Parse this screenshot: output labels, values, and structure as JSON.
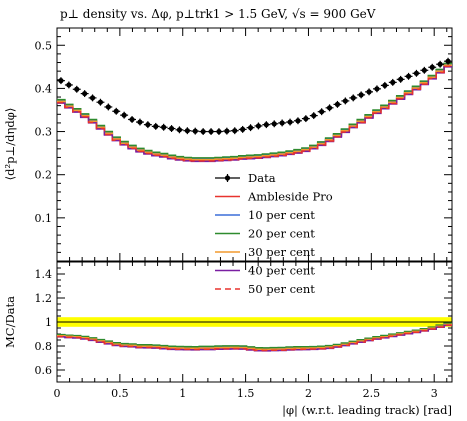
{
  "chart_data": {
    "type": "line",
    "title": "p⊥ density vs. Δφ, p⊥trk1 > 1.5 GeV, √s = 900 GeV",
    "ylabel_main": "⟨d²p⊥/dηdφ⟩",
    "ylabel_ratio": "MC/Data",
    "xlabel": "|φ| (w.r.t. leading track) [rad]",
    "xlim": [
      0,
      3.1416
    ],
    "ylim_main": [
      0,
      0.54
    ],
    "ylim_ratio": [
      0.5,
      1.5
    ],
    "x_ticks": [
      0,
      0.5,
      1,
      1.5,
      2,
      2.5,
      3
    ],
    "x_tick_labels": [
      "0",
      "0.5",
      "1",
      "1.5",
      "2",
      "2.5",
      "3"
    ],
    "y_ticks_main": [
      0.1,
      0.2,
      0.3,
      0.4,
      0.5
    ],
    "y_tick_labels_main": [
      "0.1",
      "0.2",
      "0.3",
      "0.4",
      "0.5"
    ],
    "y_ticks_ratio": [
      0.6,
      0.8,
      1.0,
      1.2,
      1.4
    ],
    "y_tick_labels_ratio": [
      "0.6",
      "0.8",
      "1",
      "1.2",
      "1.4"
    ],
    "legend_placement": "bottom-center",
    "n_bins": 50,
    "series": [
      {
        "name": "Data",
        "kind": "points",
        "color": "#000000",
        "values": [
          0.418,
          0.408,
          0.398,
          0.388,
          0.378,
          0.368,
          0.357,
          0.347,
          0.338,
          0.328,
          0.322,
          0.316,
          0.312,
          0.31,
          0.307,
          0.304,
          0.302,
          0.301,
          0.3,
          0.3,
          0.3,
          0.301,
          0.302,
          0.305,
          0.309,
          0.313,
          0.316,
          0.318,
          0.32,
          0.322,
          0.325,
          0.33,
          0.337,
          0.346,
          0.355,
          0.363,
          0.371,
          0.378,
          0.385,
          0.392,
          0.399,
          0.407,
          0.414,
          0.421,
          0.428,
          0.435,
          0.442,
          0.449,
          0.456,
          0.463
        ]
      },
      {
        "name": "Ambleside Pro",
        "kind": "step",
        "color": "#e8332e",
        "dash": "",
        "values": [
          0.368,
          0.357,
          0.347,
          0.335,
          0.322,
          0.308,
          0.294,
          0.281,
          0.271,
          0.262,
          0.255,
          0.25,
          0.246,
          0.243,
          0.239,
          0.236,
          0.234,
          0.233,
          0.233,
          0.233,
          0.234,
          0.235,
          0.236,
          0.238,
          0.239,
          0.24,
          0.242,
          0.244,
          0.246,
          0.249,
          0.252,
          0.256,
          0.262,
          0.27,
          0.279,
          0.289,
          0.3,
          0.311,
          0.322,
          0.333,
          0.344,
          0.355,
          0.366,
          0.377,
          0.388,
          0.399,
          0.411,
          0.424,
          0.438,
          0.452
        ]
      },
      {
        "name": "10 per cent",
        "kind": "step",
        "color": "#3b6fd8",
        "dash": "",
        "values": [
          0.372,
          0.361,
          0.351,
          0.339,
          0.326,
          0.312,
          0.298,
          0.285,
          0.275,
          0.266,
          0.259,
          0.254,
          0.25,
          0.247,
          0.243,
          0.24,
          0.238,
          0.237,
          0.237,
          0.237,
          0.238,
          0.239,
          0.24,
          0.242,
          0.243,
          0.244,
          0.246,
          0.248,
          0.25,
          0.253,
          0.256,
          0.26,
          0.266,
          0.274,
          0.283,
          0.293,
          0.304,
          0.315,
          0.326,
          0.337,
          0.348,
          0.359,
          0.37,
          0.381,
          0.392,
          0.403,
          0.415,
          0.428,
          0.442,
          0.456
        ]
      },
      {
        "name": "20 per cent",
        "kind": "step",
        "color": "#2e8b2e",
        "dash": "",
        "values": [
          0.374,
          0.363,
          0.353,
          0.341,
          0.328,
          0.314,
          0.3,
          0.287,
          0.277,
          0.268,
          0.261,
          0.256,
          0.252,
          0.249,
          0.245,
          0.242,
          0.24,
          0.239,
          0.239,
          0.239,
          0.24,
          0.241,
          0.242,
          0.244,
          0.245,
          0.246,
          0.248,
          0.25,
          0.252,
          0.255,
          0.258,
          0.262,
          0.268,
          0.276,
          0.285,
          0.295,
          0.306,
          0.317,
          0.328,
          0.339,
          0.35,
          0.361,
          0.372,
          0.383,
          0.394,
          0.405,
          0.417,
          0.43,
          0.444,
          0.458
        ]
      },
      {
        "name": "30 per cent",
        "kind": "step",
        "color": "#f29a2e",
        "dash": "",
        "values": [
          0.37,
          0.359,
          0.349,
          0.337,
          0.324,
          0.31,
          0.296,
          0.283,
          0.273,
          0.264,
          0.257,
          0.252,
          0.248,
          0.245,
          0.241,
          0.238,
          0.236,
          0.235,
          0.235,
          0.235,
          0.236,
          0.237,
          0.238,
          0.24,
          0.241,
          0.242,
          0.244,
          0.246,
          0.248,
          0.251,
          0.254,
          0.258,
          0.264,
          0.272,
          0.281,
          0.291,
          0.302,
          0.313,
          0.324,
          0.335,
          0.346,
          0.357,
          0.368,
          0.379,
          0.39,
          0.401,
          0.413,
          0.426,
          0.44,
          0.454
        ]
      },
      {
        "name": "40 per cent",
        "kind": "step",
        "color": "#7a1fa2",
        "dash": "",
        "values": [
          0.366,
          0.355,
          0.345,
          0.333,
          0.32,
          0.306,
          0.292,
          0.279,
          0.269,
          0.26,
          0.253,
          0.248,
          0.244,
          0.241,
          0.237,
          0.234,
          0.232,
          0.231,
          0.231,
          0.231,
          0.232,
          0.233,
          0.234,
          0.236,
          0.237,
          0.238,
          0.24,
          0.242,
          0.244,
          0.247,
          0.25,
          0.254,
          0.26,
          0.268,
          0.277,
          0.287,
          0.298,
          0.309,
          0.32,
          0.331,
          0.342,
          0.353,
          0.364,
          0.375,
          0.386,
          0.397,
          0.409,
          0.422,
          0.436,
          0.45
        ]
      },
      {
        "name": "50 per cent",
        "kind": "step",
        "color": "#e8332e",
        "dash": "6,4",
        "values": [
          0.367,
          0.356,
          0.346,
          0.334,
          0.321,
          0.307,
          0.293,
          0.28,
          0.27,
          0.261,
          0.254,
          0.249,
          0.245,
          0.242,
          0.238,
          0.235,
          0.233,
          0.232,
          0.232,
          0.232,
          0.233,
          0.234,
          0.235,
          0.237,
          0.238,
          0.239,
          0.241,
          0.243,
          0.245,
          0.248,
          0.251,
          0.255,
          0.261,
          0.269,
          0.278,
          0.288,
          0.299,
          0.31,
          0.321,
          0.332,
          0.343,
          0.354,
          0.365,
          0.376,
          0.387,
          0.398,
          0.41,
          0.423,
          0.437,
          0.451
        ]
      }
    ]
  }
}
